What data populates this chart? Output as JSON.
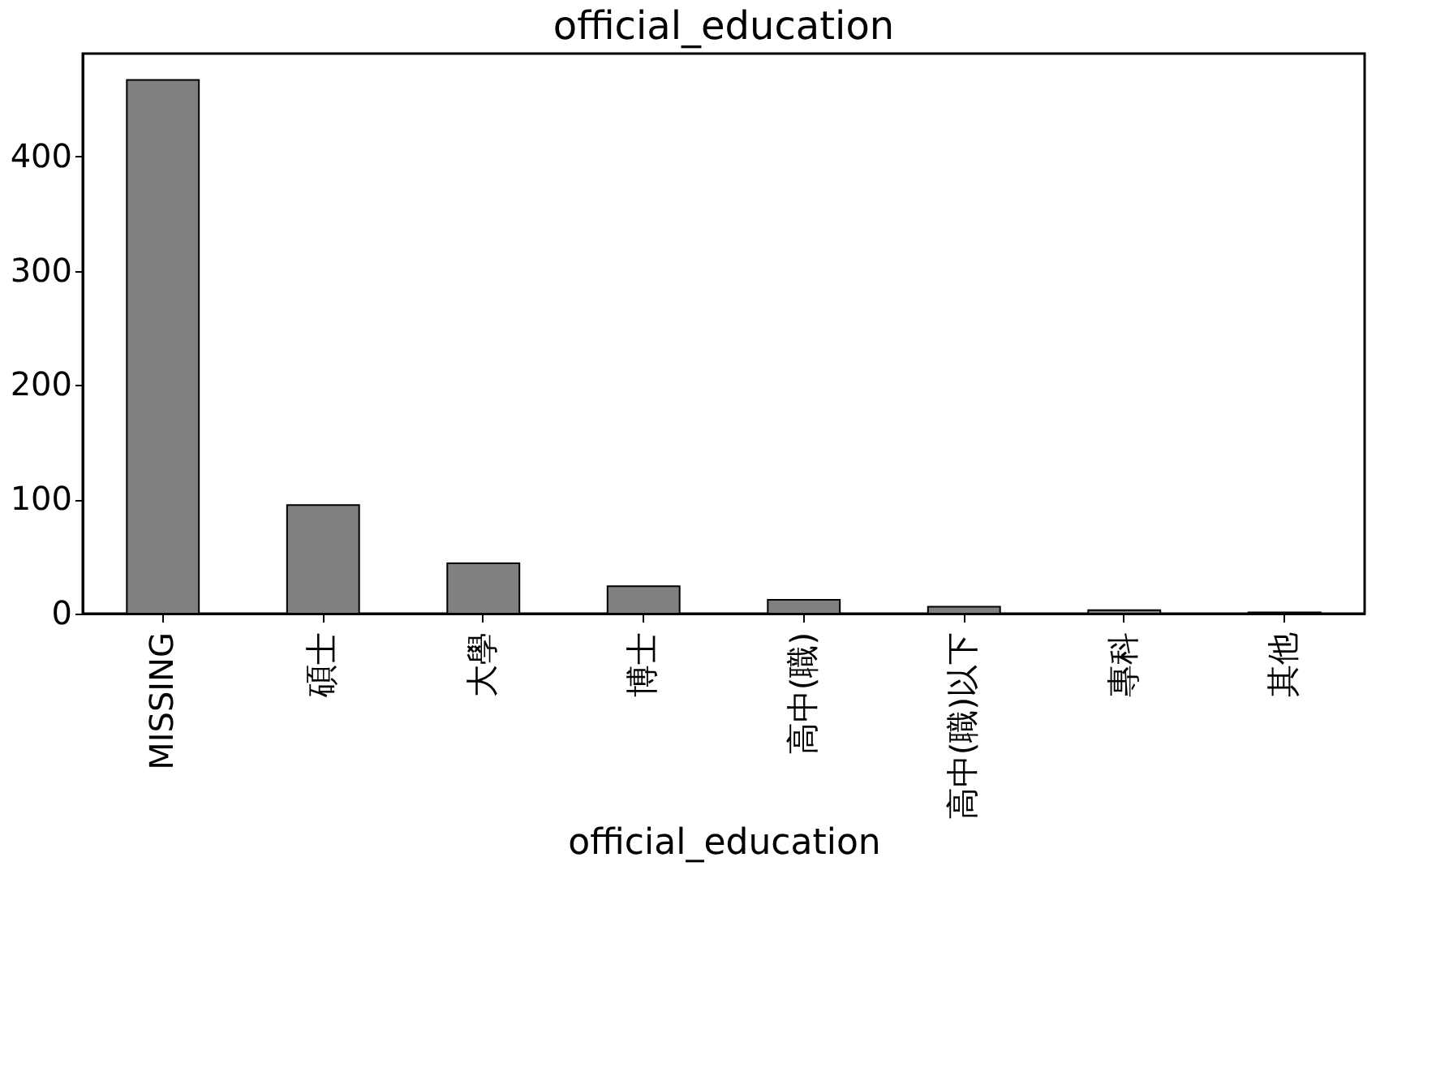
{
  "chart_data": {
    "type": "bar",
    "title": "official_education",
    "xlabel": "official_education",
    "categories": [
      "MISSING",
      "碩士",
      "大學",
      "博士",
      "高中(職)",
      "高中(職)以下",
      "專科",
      "其他"
    ],
    "values": [
      467,
      95,
      44,
      24,
      12,
      6,
      3,
      1
    ],
    "color": "#808080",
    "ylim": [
      0,
      490
    ],
    "yticks": [
      0,
      100,
      200,
      300,
      400
    ],
    "grid": false
  }
}
